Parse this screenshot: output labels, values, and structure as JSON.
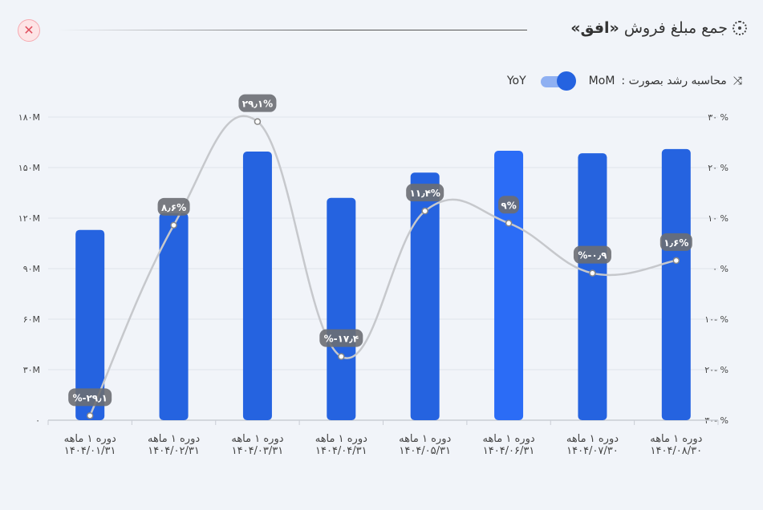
{
  "header": {
    "title_prefix": "جمع مبلغ فروش",
    "title_bold": "«افق»",
    "close_icon": "close-icon",
    "title_icon": "dotted-circle-icon"
  },
  "controls": {
    "label": "محاسبه رشد بصورت :",
    "option_on": "MoM",
    "option_off": "YoY",
    "icon": "trend-arrows-icon",
    "toggle_state": "MoM"
  },
  "colors": {
    "bar": "#2563e0",
    "bar_highlight": "#2b6cf6",
    "line": "#c6c8cc",
    "pill": "#6b6e73"
  },
  "chart_data": {
    "type": "bar",
    "categories": [
      [
        "دوره ۱ ماهه",
        "۱۴۰۴/۰۱/۳۱"
      ],
      [
        "دوره ۱ ماهه",
        "۱۴۰۴/۰۲/۳۱"
      ],
      [
        "دوره ۱ ماهه",
        "۱۴۰۴/۰۳/۳۱"
      ],
      [
        "دوره ۱ ماهه",
        "۱۴۰۴/۰۴/۳۱"
      ],
      [
        "دوره ۱ ماهه",
        "۱۴۰۴/۰۵/۳۱"
      ],
      [
        "دوره ۱ ماهه",
        "۱۴۰۴/۰۶/۳۱"
      ],
      [
        "دوره ۱ ماهه",
        "۱۴۰۴/۰۷/۳۰"
      ],
      [
        "دوره ۱ ماهه",
        "۱۴۰۴/۰۸/۳۰"
      ]
    ],
    "series": [
      {
        "name": "sales",
        "axis": "left",
        "unit": "M",
        "values": [
          113,
          123,
          159.5,
          132,
          147,
          160,
          158.5,
          161
        ]
      },
      {
        "name": "growth",
        "type": "line",
        "axis": "right",
        "unit": "%",
        "values": [
          -29.1,
          8.6,
          29.1,
          -17.4,
          11.4,
          9,
          -0.9,
          1.6
        ],
        "labels": [
          "%-۲۹٫۱",
          "۸٫۶%",
          "۲۹٫۱%",
          "%-۱۷٫۴",
          "۱۱٫۴%",
          "۹%",
          "%-۰٫۹",
          "۱٫۶%"
        ]
      }
    ],
    "ylim": [
      0,
      180
    ],
    "y2lim": [
      -30,
      30
    ],
    "yticks": [
      "۰",
      "۳۰M",
      "۶۰M",
      "۹۰M",
      "۱۲۰M",
      "۱۵۰M",
      "۱۸۰M"
    ],
    "y2ticks": [
      "% -۳۰",
      "% -۲۰",
      "% -۱۰",
      "% ۰",
      "% ۱۰",
      "% ۲۰",
      "% ۳۰"
    ],
    "highlight_index": 5,
    "grid": true
  }
}
